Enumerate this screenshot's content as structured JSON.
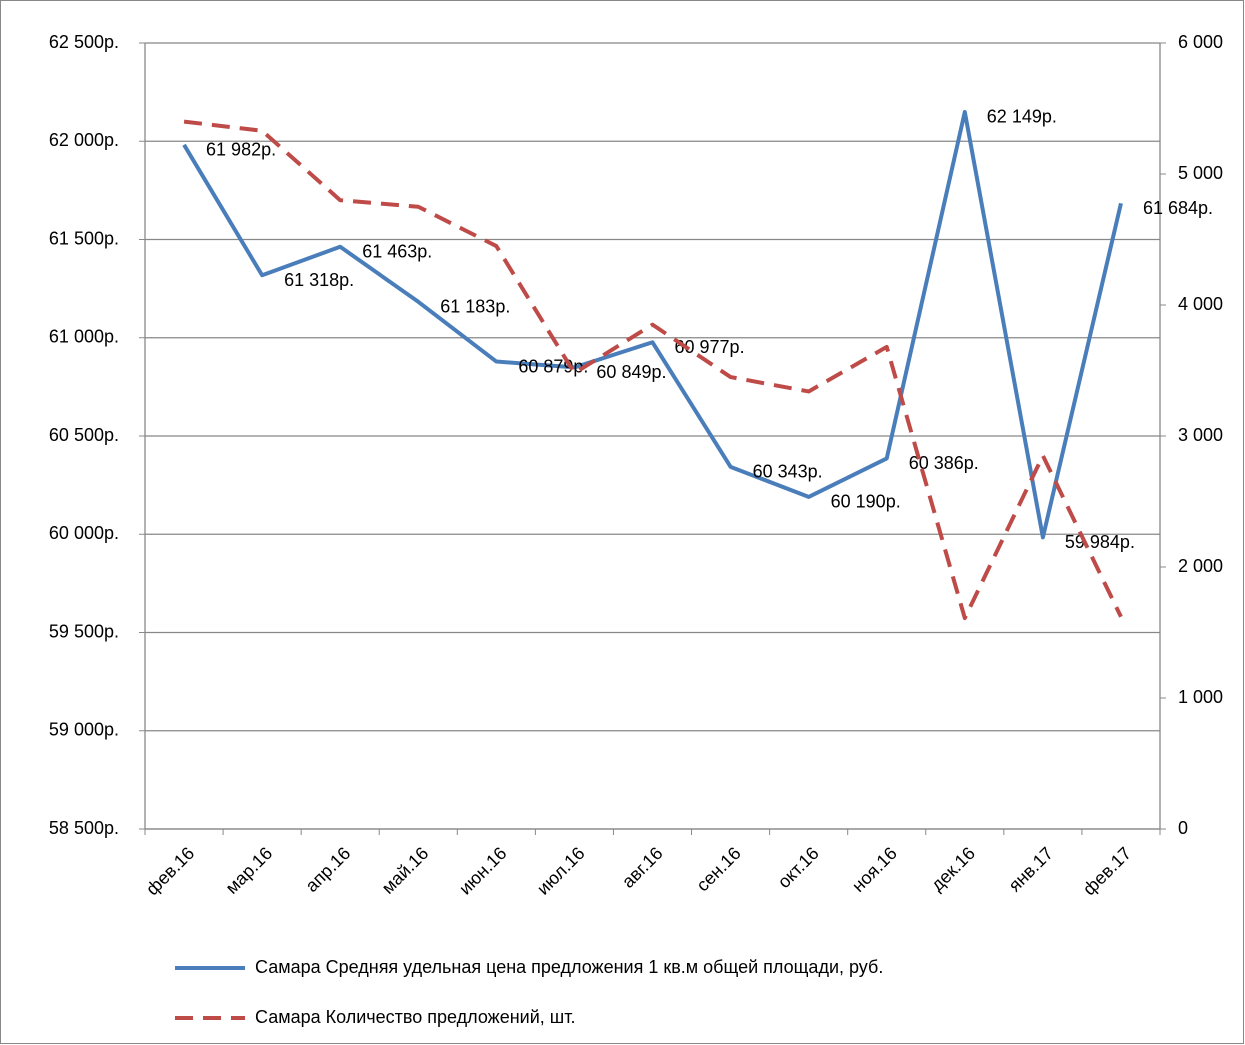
{
  "chart_data": {
    "type": "line",
    "categories": [
      "фев.16",
      "мар.16",
      "апр.16",
      "май.16",
      "июн.16",
      "июл.16",
      "авг.16",
      "сен.16",
      "окт.16",
      "ноя.16",
      "дек.16",
      "янв.17",
      "фев.17"
    ],
    "series": [
      {
        "name": "Самара Средняя удельная цена предложения 1 кв.м общей площади, руб.",
        "color": "#4a7ebb",
        "line_style": "solid",
        "values": [
          61982,
          61318,
          61463,
          61183,
          60879,
          60849,
          60977,
          60343,
          60190,
          60386,
          62149,
          59984,
          61684
        ],
        "value_labels": [
          "61 982р.",
          "61 318р.",
          "61 463р.",
          "61 183р.",
          "60 879р.",
          "60 849р.",
          "60 977р.",
          "60 343р.",
          "60 190р.",
          "60 386р.",
          "62 149р.",
          "59 984р.",
          "61 684р."
        ]
      },
      {
        "name": "Самара Количество предложений, шт.",
        "color": "#be4b48",
        "line_style": "dashed",
        "axis": "y2",
        "values": [
          5400,
          5330,
          4800,
          4750,
          4450,
          3480,
          3850,
          3450,
          3340,
          3680,
          1610,
          2850,
          1620
        ]
      }
    ],
    "ylim": [
      58500,
      62500
    ],
    "yticks": [
      {
        "value": 58500,
        "label": "58 500р."
      },
      {
        "value": 59000,
        "label": "59 000р."
      },
      {
        "value": 59500,
        "label": "59 500р."
      },
      {
        "value": 60000,
        "label": "60 000р."
      },
      {
        "value": 60500,
        "label": "60 500р."
      },
      {
        "value": 61000,
        "label": "61 000р."
      },
      {
        "value": 61500,
        "label": "61 500р."
      },
      {
        "value": 62000,
        "label": "62 000р."
      },
      {
        "value": 62500,
        "label": "62 500р."
      }
    ],
    "y2lim": [
      0,
      6000
    ],
    "y2ticks": [
      0,
      {
        "value": 1000,
        "label": "1 000"
      },
      {
        "value": 2000,
        "label": "2 000"
      },
      {
        "value": 3000,
        "label": "3 000"
      },
      {
        "value": 4000,
        "label": "4 000"
      },
      {
        "value": 5000,
        "label": "5 000"
      },
      {
        "value": 6000,
        "label": "6 000"
      }
    ],
    "grid": true,
    "legend": "bottom"
  }
}
